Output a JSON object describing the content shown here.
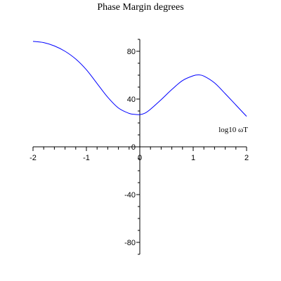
{
  "chart_data": {
    "type": "line",
    "title": "Phase Margin degrees",
    "xlabel": "log10 ωT",
    "ylabel": "",
    "xlim": [
      -2,
      2
    ],
    "ylim": [
      -90,
      90
    ],
    "xticks": [
      -2,
      -1,
      0,
      1,
      2
    ],
    "yticks": [
      80,
      40,
      0,
      -40,
      -80
    ],
    "xtick_labels": [
      "-2",
      "-1",
      "0",
      "1",
      "2"
    ],
    "ytick_labels": [
      "80",
      "40",
      "0",
      "-40",
      "-80"
    ],
    "grid": false,
    "line_color": "#0000ff",
    "series": [
      {
        "x": [
          -2.0,
          -1.8,
          -1.6,
          -1.4,
          -1.2,
          -1.0,
          -0.8,
          -0.6,
          -0.4,
          -0.2,
          -0.1,
          0.0,
          0.1,
          0.2,
          0.4,
          0.6,
          0.8,
          1.0,
          1.1,
          1.2,
          1.4,
          1.6,
          1.8,
          2.0
        ],
        "y": [
          88.3,
          87.3,
          84.5,
          80.0,
          73.5,
          64.5,
          53.0,
          41.5,
          32.5,
          28.0,
          27.2,
          27.0,
          28.3,
          31.5,
          39.5,
          48.0,
          55.5,
          59.5,
          60.2,
          59.2,
          53.5,
          44.5,
          35.0,
          25.5
        ]
      }
    ]
  }
}
